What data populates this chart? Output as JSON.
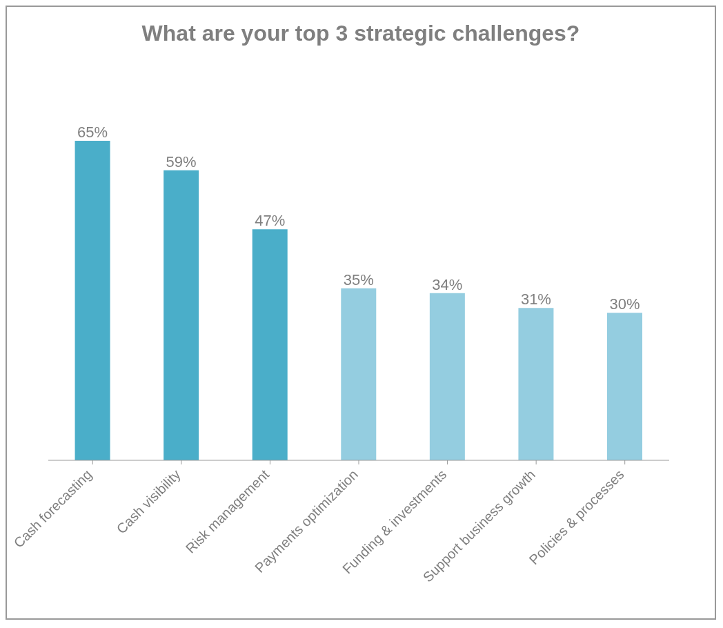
{
  "chart_data": {
    "type": "bar",
    "title": "What are your top 3 strategic challenges?",
    "categories": [
      "Cash forecasting",
      "Cash visibility",
      "Risk management",
      "Payments optimization",
      "Funding & investments",
      "Support business growth",
      "Policies & processes"
    ],
    "values": [
      65,
      59,
      47,
      35,
      34,
      31,
      30
    ],
    "colors": [
      "#4aaec9",
      "#4aaec9",
      "#4aaec9",
      "#94cde0",
      "#94cde0",
      "#94cde0",
      "#94cde0"
    ],
    "value_labels": [
      "65%",
      "59%",
      "47%",
      "35%",
      "34%",
      "31%",
      "30%"
    ],
    "grid": false,
    "legend": false
  }
}
